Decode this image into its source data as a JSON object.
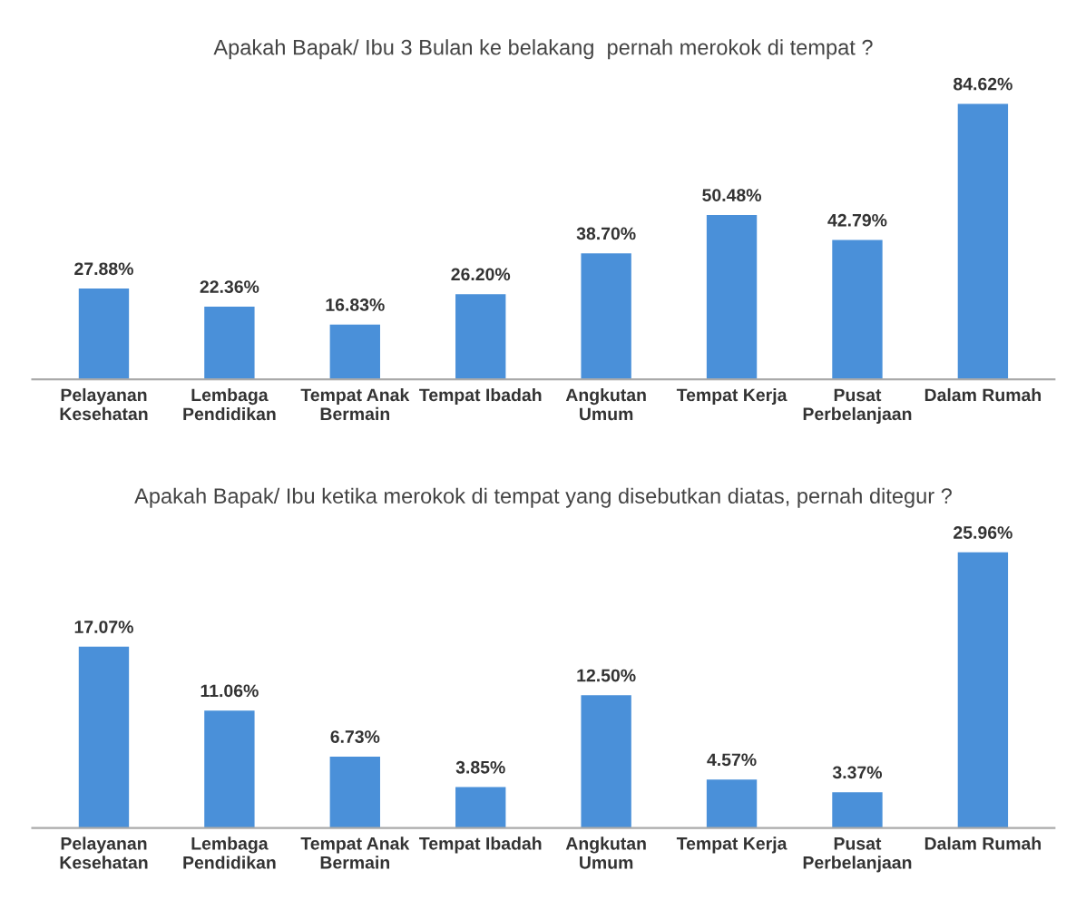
{
  "chart_data": [
    {
      "type": "bar",
      "title": "Apakah Bapak/ Ibu 3 Bulan ke belakang  pernah merokok di tempat ?",
      "categories": [
        "Pelayanan\nKesehatan",
        "Lembaga\nPendidikan",
        "Tempat Anak\nBermain",
        "Tempat Ibadah",
        "Angkutan\nUmum",
        "Tempat Kerja",
        "Pusat\nPerbelanjaan",
        "Dalam Rumah"
      ],
      "values": [
        27.88,
        22.36,
        16.83,
        26.2,
        38.7,
        50.48,
        42.79,
        84.62
      ],
      "value_labels": [
        "27.88%",
        "22.36%",
        "16.83%",
        "26.20%",
        "38.70%",
        "50.48%",
        "42.79%",
        "84.62%"
      ],
      "color": "#4a90d9",
      "tick_labels": "x",
      "grid": false,
      "legend": false
    },
    {
      "type": "bar",
      "title": "Apakah Bapak/ Ibu ketika merokok di tempat yang disebutkan diatas, pernah ditegur ?",
      "categories": [
        "Pelayanan\nKesehatan",
        "Lembaga\nPendidikan",
        "Tempat Anak\nBermain",
        "Tempat Ibadah",
        "Angkutan\nUmum",
        "Tempat Kerja",
        "Pusat\nPerbelanjaan",
        "Dalam Rumah"
      ],
      "values": [
        17.07,
        11.06,
        6.73,
        3.85,
        12.5,
        4.57,
        3.37,
        25.96
      ],
      "value_labels": [
        "17.07%",
        "11.06%",
        "6.73%",
        "3.85%",
        "12.50%",
        "4.57%",
        "3.37%",
        "25.96%"
      ],
      "color": "#4a90d9",
      "tick_labels": "x",
      "grid": false,
      "legend": false
    }
  ]
}
